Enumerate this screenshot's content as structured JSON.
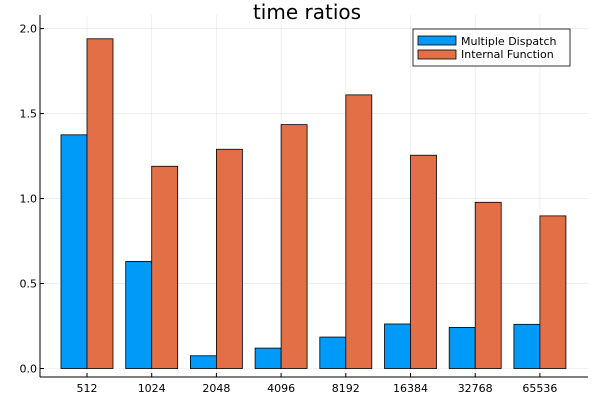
{
  "chart_data": {
    "type": "bar",
    "title": "time ratios",
    "xlabel": "",
    "ylabel": "",
    "categories": [
      "512",
      "1024",
      "2048",
      "4096",
      "8192",
      "16384",
      "32768",
      "65536"
    ],
    "series": [
      {
        "name": "Multiple Dispatch",
        "color": "#009af9",
        "values": [
          1.375,
          0.63,
          0.075,
          0.12,
          0.185,
          0.262,
          0.242,
          0.26
        ]
      },
      {
        "name": "Internal Function",
        "color": "#e26f46",
        "values": [
          1.94,
          1.19,
          1.29,
          1.435,
          1.61,
          1.255,
          0.978,
          0.898
        ]
      }
    ],
    "ylim": [
      -0.05,
      2.08
    ],
    "yticks": [
      0.0,
      0.5,
      1.0,
      1.5,
      2.0
    ],
    "ytick_labels": [
      "0.0",
      "0.5",
      "1.0",
      "1.5",
      "2.0"
    ],
    "grid": true,
    "legend_position": "top-right"
  }
}
